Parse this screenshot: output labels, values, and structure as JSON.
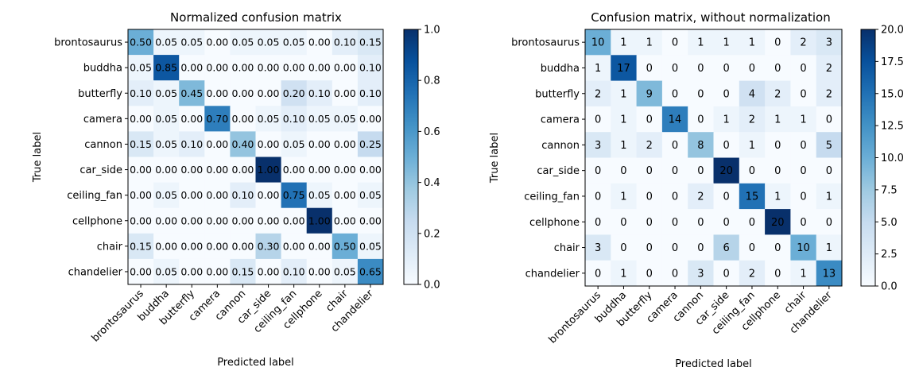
{
  "chart_data": [
    {
      "type": "heatmap",
      "title": "Normalized confusion matrix",
      "xlabel": "Predicted label",
      "ylabel": "True label",
      "categories": [
        "brontosaurus",
        "buddha",
        "butterfly",
        "camera",
        "cannon",
        "car_side",
        "ceiling_fan",
        "cellphone",
        "chair",
        "chandelier"
      ],
      "values": [
        [
          0.5,
          0.05,
          0.05,
          0.0,
          0.05,
          0.05,
          0.05,
          0.0,
          0.1,
          0.15
        ],
        [
          0.05,
          0.85,
          0.0,
          0.0,
          0.0,
          0.0,
          0.0,
          0.0,
          0.0,
          0.1
        ],
        [
          0.1,
          0.05,
          0.45,
          0.0,
          0.0,
          0.0,
          0.2,
          0.1,
          0.0,
          0.1
        ],
        [
          0.0,
          0.05,
          0.0,
          0.7,
          0.0,
          0.05,
          0.1,
          0.05,
          0.05,
          0.0
        ],
        [
          0.15,
          0.05,
          0.1,
          0.0,
          0.4,
          0.0,
          0.05,
          0.0,
          0.0,
          0.25
        ],
        [
          0.0,
          0.0,
          0.0,
          0.0,
          0.0,
          1.0,
          0.0,
          0.0,
          0.0,
          0.0
        ],
        [
          0.0,
          0.05,
          0.0,
          0.0,
          0.1,
          0.0,
          0.75,
          0.05,
          0.0,
          0.05
        ],
        [
          0.0,
          0.0,
          0.0,
          0.0,
          0.0,
          0.0,
          0.0,
          1.0,
          0.0,
          0.0
        ],
        [
          0.15,
          0.0,
          0.0,
          0.0,
          0.0,
          0.3,
          0.0,
          0.0,
          0.5,
          0.05
        ],
        [
          0.0,
          0.05,
          0.0,
          0.0,
          0.15,
          0.0,
          0.1,
          0.0,
          0.05,
          0.65
        ]
      ],
      "value_format": "fixed2",
      "colorbar": {
        "min": 0.0,
        "max": 1.0,
        "ticks": [
          0.0,
          0.2,
          0.4,
          0.6,
          0.8,
          1.0
        ],
        "tick_labels": [
          "0.0",
          "0.2",
          "0.4",
          "0.6",
          "0.8",
          "1.0"
        ]
      },
      "colormap": "Blues"
    },
    {
      "type": "heatmap",
      "title": "Confusion matrix, without normalization",
      "xlabel": "Predicted label",
      "ylabel": "True label",
      "categories": [
        "brontosaurus",
        "buddha",
        "butterfly",
        "camera",
        "cannon",
        "car_side",
        "ceiling_fan",
        "cellphone",
        "chair",
        "chandelier"
      ],
      "values": [
        [
          10,
          1,
          1,
          0,
          1,
          1,
          1,
          0,
          2,
          3
        ],
        [
          1,
          17,
          0,
          0,
          0,
          0,
          0,
          0,
          0,
          2
        ],
        [
          2,
          1,
          9,
          0,
          0,
          0,
          4,
          2,
          0,
          2
        ],
        [
          0,
          1,
          0,
          14,
          0,
          1,
          2,
          1,
          1,
          0
        ],
        [
          3,
          1,
          2,
          0,
          8,
          0,
          1,
          0,
          0,
          5
        ],
        [
          0,
          0,
          0,
          0,
          0,
          20,
          0,
          0,
          0,
          0
        ],
        [
          0,
          1,
          0,
          0,
          2,
          0,
          15,
          1,
          0,
          1
        ],
        [
          0,
          0,
          0,
          0,
          0,
          0,
          0,
          20,
          0,
          0
        ],
        [
          3,
          0,
          0,
          0,
          0,
          6,
          0,
          0,
          10,
          1
        ],
        [
          0,
          1,
          0,
          0,
          3,
          0,
          2,
          0,
          1,
          13
        ]
      ],
      "value_format": "int",
      "colorbar": {
        "min": 0.0,
        "max": 20.0,
        "ticks": [
          0,
          2.5,
          5,
          7.5,
          10,
          12.5,
          15,
          17.5,
          20
        ],
        "tick_labels": [
          "0.0",
          "2.5",
          "5.0",
          "7.5",
          "10.0",
          "12.5",
          "15.0",
          "17.5",
          "20.0"
        ]
      },
      "colormap": "Blues"
    }
  ]
}
